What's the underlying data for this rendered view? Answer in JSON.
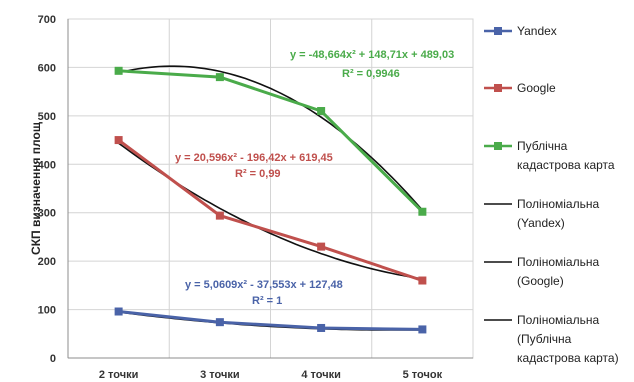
{
  "colors": {
    "yandex": "#4a63a8",
    "google": "#c0504d",
    "kadastr": "#4aab4a",
    "trend": "#111111",
    "grid": "#d4d4d4",
    "axis": "#8c8c8c"
  },
  "chart_data": {
    "type": "line",
    "ylabel": "СКП визначення площ",
    "xlabel": "",
    "ylim": [
      0,
      700
    ],
    "yticks": [
      0,
      100,
      200,
      300,
      400,
      500,
      600,
      700
    ],
    "categories": [
      "2 точки",
      "3 точки",
      "4 точки",
      "5 точок"
    ],
    "grid": "on",
    "legend_position": "right",
    "series": [
      {
        "key": "yandex",
        "name": "Yandex",
        "values": [
          96,
          74,
          62,
          59
        ]
      },
      {
        "key": "google",
        "name": "Google",
        "values": [
          450,
          294,
          230,
          160
        ]
      },
      {
        "key": "kadastr",
        "name": "Публічна кадастрова карта",
        "values": [
          593,
          580,
          510,
          302
        ]
      }
    ],
    "trendlines": [
      {
        "name": "Поліноміальна (Yandex)",
        "of": "yandex",
        "equation": "y = 5,0609x² - 37,553x + 127,48",
        "r2": "R² = 1",
        "coef": [
          5.0609,
          -37.553,
          127.48
        ]
      },
      {
        "name": "Поліноміальна (Google)",
        "of": "google",
        "equation": "y = 20,596x² - 196,42x + 619,45",
        "r2": "R² = 0,99",
        "coef": [
          20.596,
          -196.42,
          619.45
        ]
      },
      {
        "name": "Поліноміальна (Публічна кадастрова карта)",
        "of": "kadastr",
        "equation": "y = -48,664x² + 148,71x + 489,03",
        "r2": "R² = 0,9946",
        "coef": [
          -48.664,
          148.71,
          489.03
        ]
      }
    ]
  }
}
